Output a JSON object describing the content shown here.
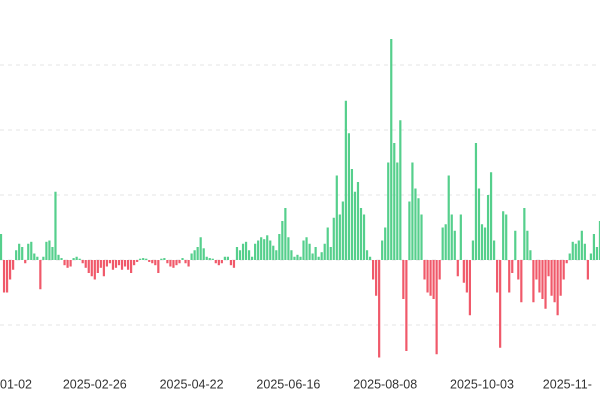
{
  "chart_data": {
    "type": "bar",
    "categories": [
      "01-02",
      null,
      null,
      null,
      null,
      null,
      null,
      null,
      null,
      null,
      null,
      null,
      null,
      null,
      null,
      null,
      null,
      null,
      null,
      null,
      null,
      null,
      null,
      null,
      null,
      null,
      null,
      null,
      null,
      null,
      null,
      null,
      "2025-02-26",
      null,
      null,
      null,
      null,
      null,
      null,
      null,
      null,
      null,
      null,
      null,
      null,
      null,
      null,
      null,
      null,
      null,
      null,
      null,
      null,
      null,
      null,
      null,
      null,
      null,
      null,
      null,
      null,
      null,
      null,
      null,
      "2025-04-22",
      null,
      null,
      null,
      null,
      null,
      null,
      null,
      null,
      null,
      null,
      null,
      null,
      null,
      null,
      null,
      null,
      null,
      null,
      null,
      null,
      null,
      null,
      null,
      null,
      null,
      null,
      null,
      null,
      null,
      null,
      null,
      "2025-06-16",
      null,
      null,
      null,
      null,
      null,
      null,
      null,
      null,
      null,
      null,
      null,
      null,
      null,
      null,
      null,
      null,
      null,
      null,
      null,
      null,
      null,
      null,
      null,
      null,
      null,
      null,
      null,
      null,
      null,
      null,
      null,
      "2025-08-08",
      null,
      null,
      null,
      null,
      null,
      null,
      null,
      null,
      null,
      null,
      null,
      null,
      null,
      null,
      null,
      null,
      null,
      null,
      null,
      null,
      null,
      null,
      null,
      null,
      null,
      null,
      null,
      null,
      null,
      null,
      null,
      "2025-10-03",
      null,
      null,
      null,
      null,
      null,
      null,
      null,
      null,
      null,
      null,
      null,
      null,
      null,
      null,
      null,
      null,
      null,
      null,
      null,
      null,
      null,
      null,
      null,
      null,
      null,
      null,
      null,
      null,
      null,
      null,
      null,
      "2025-11-",
      null,
      null,
      null,
      null,
      null,
      null,
      null,
      null
    ],
    "values": [
      0.43,
      0.4,
      -0.5,
      -0.5,
      -0.3,
      -0.15,
      0.15,
      0.25,
      0.2,
      -0.05,
      0.25,
      0.28,
      0.1,
      0.05,
      -0.45,
      0.05,
      0.28,
      0.3,
      0.2,
      1.05,
      0.08,
      0.03,
      -0.08,
      -0.12,
      -0.1,
      0.03,
      0.05,
      0.02,
      -0.05,
      -0.12,
      -0.2,
      -0.25,
      -0.3,
      -0.2,
      -0.12,
      -0.25,
      -0.1,
      -0.05,
      -0.15,
      -0.12,
      -0.08,
      -0.15,
      -0.1,
      -0.15,
      -0.2,
      -0.08,
      -0.03,
      0.02,
      0.03,
      0.02,
      -0.03,
      -0.05,
      -0.08,
      -0.2,
      0.02,
      0.03,
      -0.05,
      -0.1,
      -0.12,
      -0.08,
      -0.05,
      0.03,
      -0.05,
      -0.1,
      0.1,
      0.15,
      0.2,
      0.35,
      0.18,
      0.05,
      0.03,
      0.02,
      -0.05,
      -0.08,
      -0.05,
      0.05,
      0.05,
      -0.08,
      -0.12,
      0.2,
      0.15,
      0.25,
      0.28,
      0.15,
      0.05,
      0.25,
      0.3,
      0.35,
      0.32,
      0.38,
      0.3,
      0.22,
      0.15,
      0.4,
      0.6,
      0.8,
      0.35,
      0.15,
      0.05,
      0.08,
      0.05,
      0.3,
      0.35,
      0.25,
      0.1,
      0.2,
      0.05,
      0.12,
      0.25,
      0.5,
      0.2,
      0.65,
      1.3,
      0.7,
      0.9,
      2.45,
      1.95,
      1.4,
      1.05,
      1.2,
      0.8,
      0.7,
      0.15,
      0.05,
      -0.3,
      -0.55,
      -1.5,
      0.3,
      0.5,
      1.5,
      3.4,
      1.8,
      1.5,
      2.15,
      -0.6,
      -1.4,
      0.9,
      1.5,
      1.1,
      0.95,
      0.7,
      -0.3,
      -0.5,
      -0.55,
      -0.6,
      -1.45,
      -0.3,
      0.5,
      0.55,
      1.3,
      0.7,
      0.45,
      -0.25,
      0.7,
      -0.35,
      -0.5,
      -0.85,
      0.3,
      1.8,
      1.1,
      0.55,
      0.5,
      1.0,
      1.35,
      0.3,
      -0.5,
      -1.35,
      0.75,
      0.7,
      -0.5,
      -0.2,
      0.45,
      -0.3,
      -0.65,
      0.8,
      0.45,
      0.15,
      -0.65,
      -0.3,
      -0.5,
      -0.6,
      -0.75,
      -0.25,
      -0.55,
      -0.65,
      -0.85,
      -0.55,
      -0.3,
      -0.05,
      0.1,
      0.28,
      0.25,
      0.3,
      0.45,
      0.25,
      -0.3,
      0.1,
      0.4,
      0.2,
      0.6,
      0.55
    ],
    "positive_color": "#55cf8c",
    "negative_color": "#f0596a",
    "ylim": [
      -1.6,
      4
    ],
    "yticks": [
      -1,
      0,
      1,
      2,
      3
    ],
    "grid": true
  }
}
